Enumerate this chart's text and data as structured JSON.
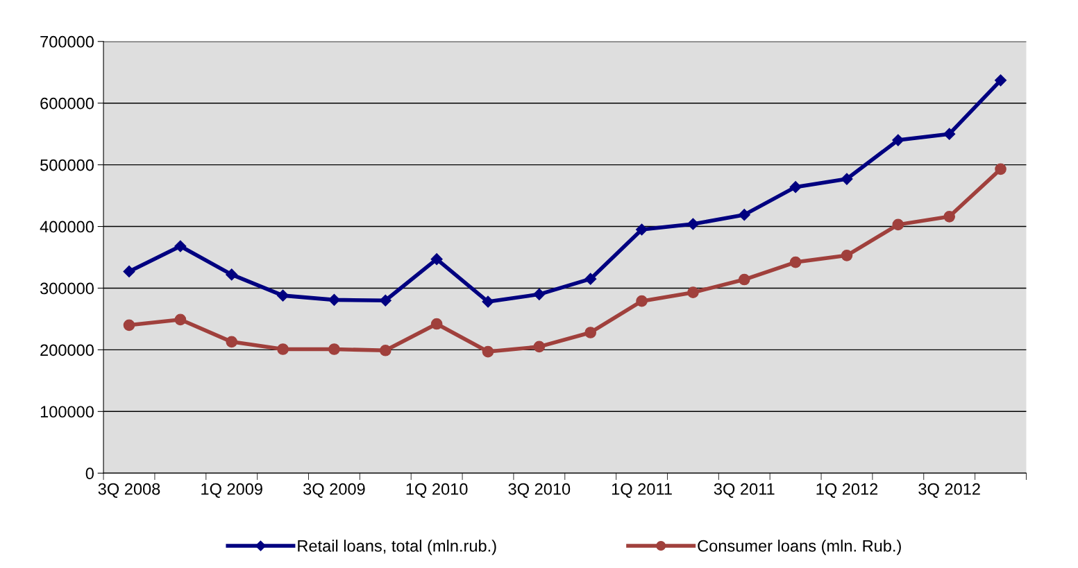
{
  "chart_data": {
    "type": "line",
    "categories": [
      "3Q 2008",
      null,
      "1Q 2009",
      null,
      "3Q 2009",
      null,
      "1Q 2010",
      null,
      "3Q 2010",
      null,
      "1Q 2011",
      null,
      "3Q 2011",
      null,
      "1Q 2012",
      null,
      "3Q 2012",
      null
    ],
    "series": [
      {
        "name": "Retail loans, total (mln.rub.)",
        "color": "#000080",
        "marker": "diamond",
        "values": [
          327000,
          368000,
          322000,
          288000,
          281000,
          280000,
          347000,
          278000,
          290000,
          315000,
          395000,
          404000,
          419000,
          464000,
          477000,
          540000,
          550000,
          637000
        ]
      },
      {
        "name": "Consumer loans (mln. Rub.)",
        "color": "#a0403c",
        "marker": "circle",
        "values": [
          240000,
          249000,
          213000,
          201000,
          201000,
          199000,
          242000,
          197000,
          205000,
          228000,
          279000,
          293000,
          314000,
          342000,
          353000,
          403000,
          416000,
          493000
        ]
      }
    ],
    "ylim": [
      0,
      700000
    ],
    "yticks": [
      0,
      100000,
      200000,
      300000,
      400000,
      500000,
      600000,
      700000
    ],
    "grid": "y",
    "legend": "bottom",
    "line_style": "solid"
  }
}
